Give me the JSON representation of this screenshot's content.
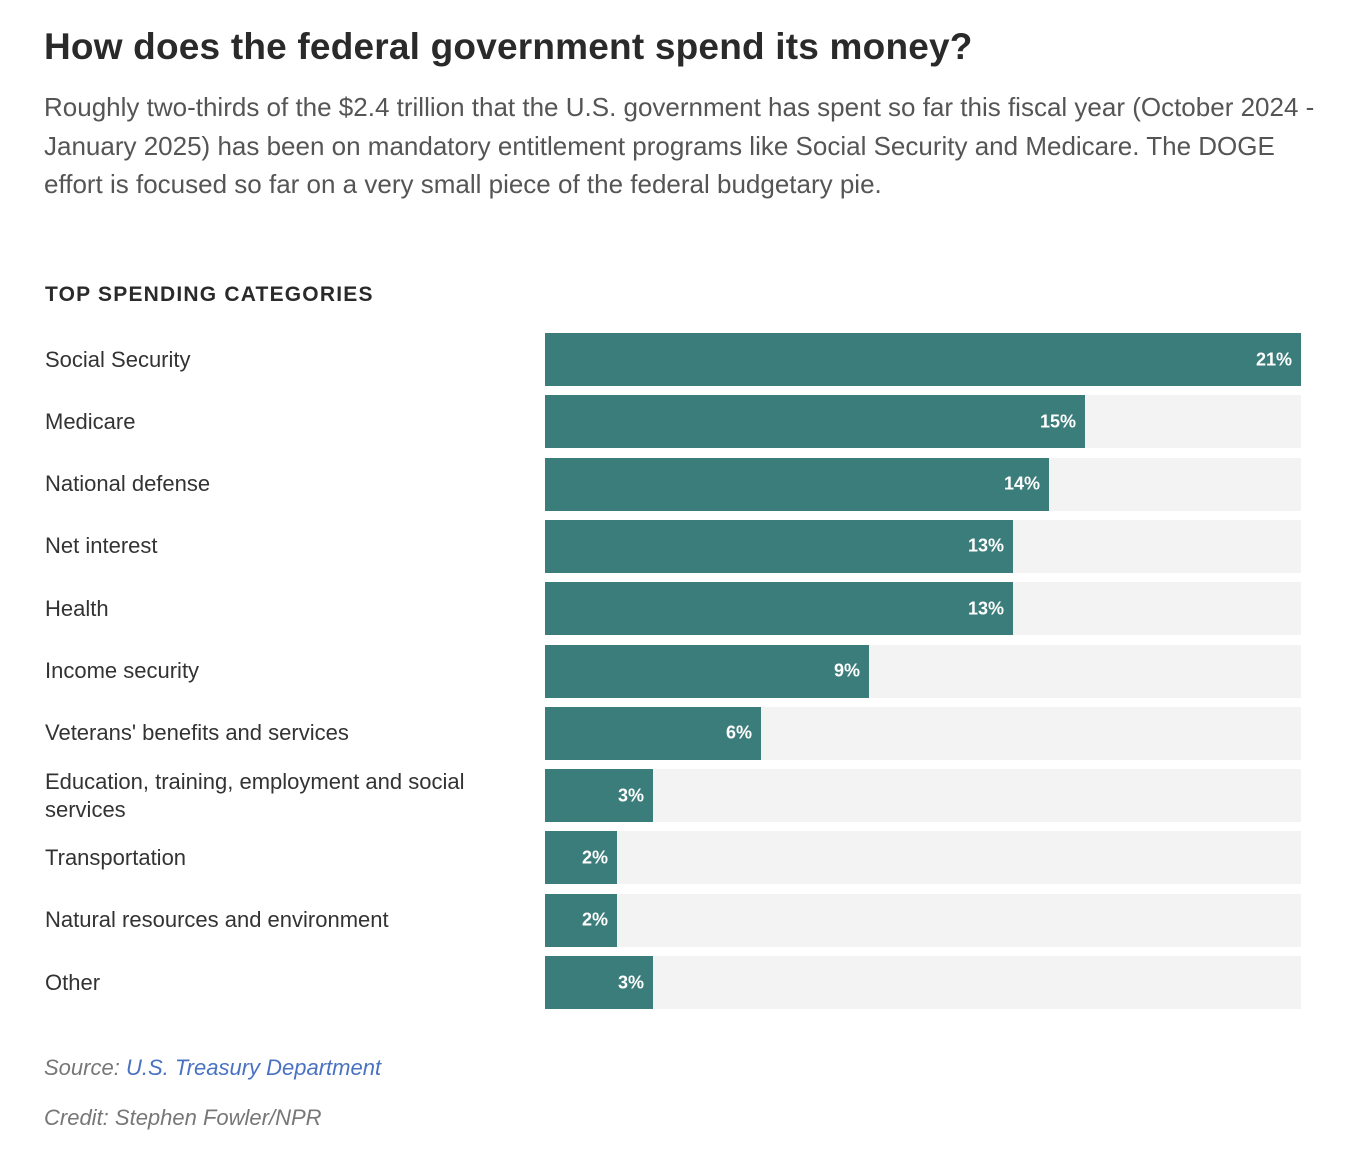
{
  "header": {
    "title": "How does the federal government spend its money?",
    "subtitle": "Roughly two-thirds of the $2.4 trillion that the U.S. government has spent so far this fiscal year (October 2024 - January 2025) has been on mandatory entitlement programs like Social Security and Medicare. The DOGE effort is focused so far on a very small piece of the federal budgetary pie."
  },
  "section_label": "TOP SPENDING CATEGORIES",
  "chart_data": {
    "type": "bar",
    "orientation": "horizontal",
    "title": "TOP SPENDING CATEGORIES",
    "xlabel": "",
    "ylabel": "",
    "xlim": [
      0,
      21
    ],
    "unit": "%",
    "categories": [
      "Social Security",
      "Medicare",
      "National defense",
      "Net interest",
      "Health",
      "Income security",
      "Veterans' benefits and services",
      "Education, training, employment and social services",
      "Transportation",
      "Natural resources and environment",
      "Other"
    ],
    "values": [
      21,
      15,
      14,
      13,
      13,
      9,
      6,
      3,
      2,
      2,
      3
    ],
    "value_labels": [
      "21%",
      "15%",
      "14%",
      "13%",
      "13%",
      "9%",
      "6%",
      "3%",
      "2%",
      "2%",
      "3%"
    ],
    "bar_color": "#3b7d7b",
    "track_color": "#f3f3f3"
  },
  "footer": {
    "source_prefix": "Source:",
    "source_link": "U.S. Treasury Department",
    "credit": "Credit: Stephen Fowler/NPR"
  }
}
